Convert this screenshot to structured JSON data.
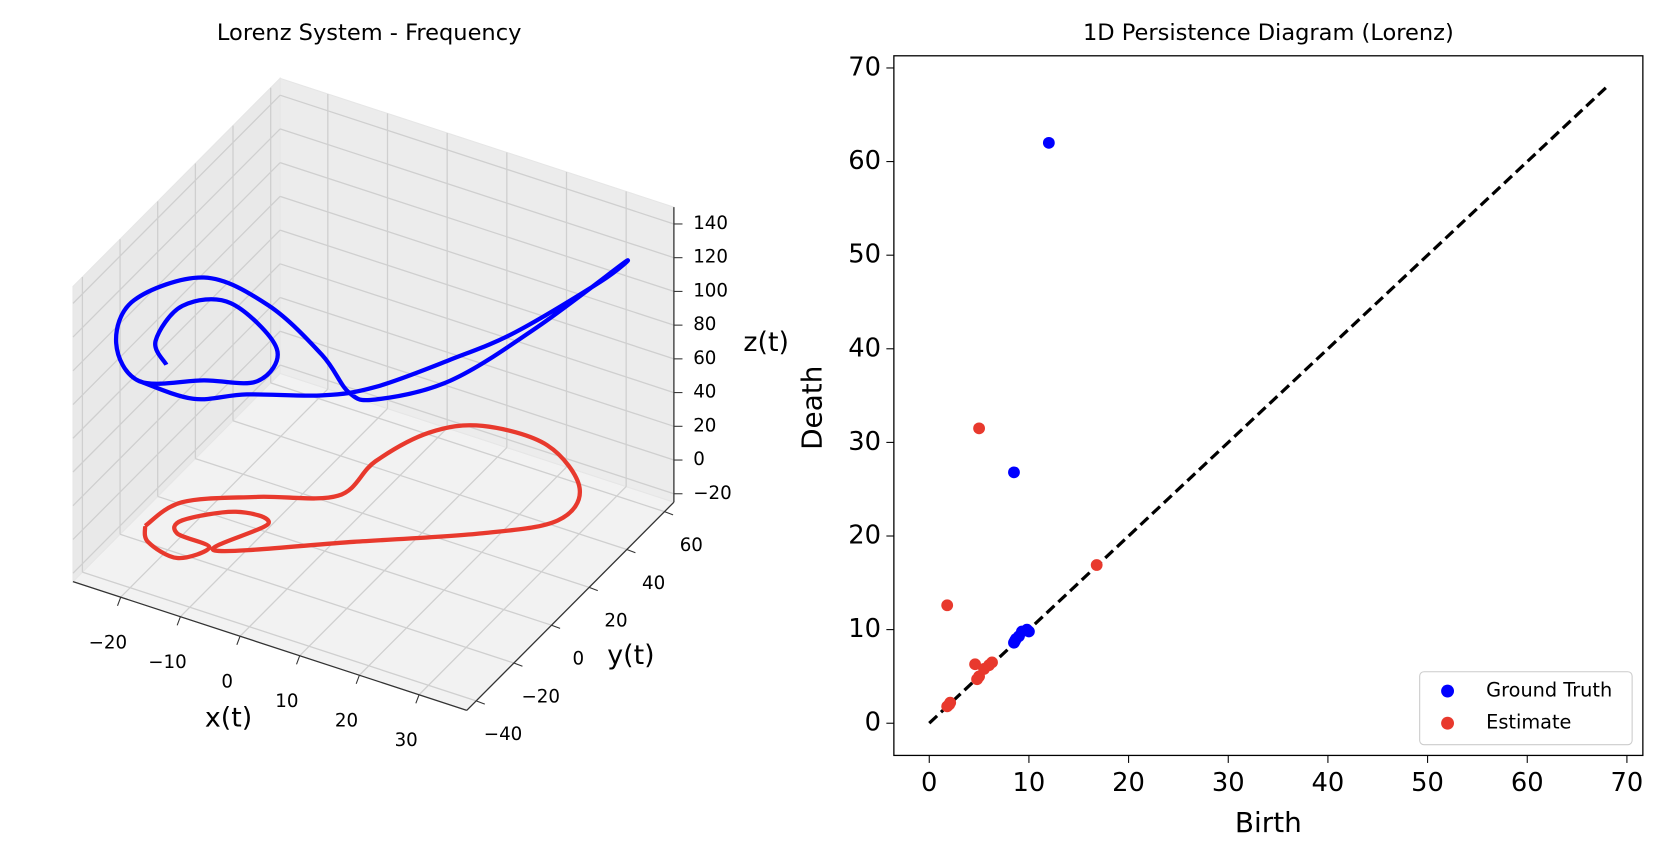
{
  "chart_data": [
    {
      "type": "line3d",
      "title": "Lorenz System - Frequency",
      "xlabel": "x(t)",
      "ylabel": "y(t)",
      "zlabel": "z(t)",
      "xlim": [
        -28,
        38
      ],
      "ylim": [
        -45,
        65
      ],
      "zlim": [
        -25,
        150
      ],
      "xticks": [
        {
          "value": -20,
          "label": "−20"
        },
        {
          "value": -10,
          "label": "−10"
        },
        0,
        10,
        20,
        30
      ],
      "yticks": [
        {
          "value": -40,
          "label": "−40"
        },
        {
          "value": -20,
          "label": "−20"
        },
        0,
        20,
        40,
        60
      ],
      "zticks": [
        {
          "value": -20,
          "label": "−20"
        },
        0,
        20,
        40,
        60,
        80,
        100,
        120,
        140
      ],
      "grid": true,
      "series": [
        {
          "color": "#0000ff",
          "x": [
            -19.3,
            -21.1,
            -16.6,
            -8.5,
            -0.8,
            -4.0,
            -13.0,
            -23.8,
            -27.7,
            -24.7,
            -13.0,
            -2.2,
            6.8,
            11.3,
            15.8,
            21.4,
            25.4,
            33.2,
            29.2,
            21.8,
            17.9,
            12.3,
            6.8,
            -5.8,
            -14.8,
            -23.8
          ],
          "y": [
            -23,
            -23,
            -23,
            -23,
            -23,
            -23,
            -23,
            -23,
            -23,
            -23,
            -23,
            -23,
            -23,
            -23,
            -23,
            -1,
            32,
            54,
            54,
            32,
            10,
            -12,
            -23,
            -23,
            -23,
            -23
          ],
          "z": [
            89,
            101,
            127,
            138,
            120,
            97,
            87,
            74,
            92,
            121,
            148,
            144,
            125,
            108,
            109,
            102,
            101,
            124,
            108,
            94,
            98,
            100,
            101,
            87,
            74,
            74
          ]
        },
        {
          "color": "#e8392d",
          "x": [
            -22.7,
            -21,
            -12.1,
            -2.1,
            -1.7,
            1.5,
            7.4,
            18,
            27.5,
            28.8,
            20.9,
            5.7,
            -10.8,
            -7.4,
            -13,
            -18.7,
            -17.7,
            -11.9,
            -14.6,
            -20.3,
            -22.7
          ],
          "y": [
            -23.5,
            -9.2,
            2.8,
            13.7,
            32.3,
            50.8,
            60.4,
            61.1,
            48.2,
            32.5,
            17.6,
            -2.6,
            -24.2,
            -6.5,
            -6,
            -16.4,
            -22.3,
            -23.6,
            -32.1,
            -29.5,
            -23.5
          ],
          "z": [
            -10,
            -10,
            -10,
            -10,
            -10,
            -10,
            -10,
            -10,
            -10,
            -10,
            -10,
            -10,
            -10,
            -10,
            -10,
            -10,
            -10,
            -10,
            -10,
            -10,
            -10
          ]
        }
      ]
    },
    {
      "type": "scatter",
      "title": "1D Persistence Diagram (Lorenz)",
      "xlabel": "Birth",
      "ylabel": "Death",
      "xlim": [
        -3.55,
        71.6
      ],
      "ylim": [
        -3.44,
        71.3
      ],
      "xticks": [
        0,
        10,
        20,
        30,
        40,
        50,
        60,
        70
      ],
      "yticks": [
        0,
        10,
        20,
        30,
        40,
        50,
        60,
        70
      ],
      "legend": "lower right",
      "reference_line": {
        "x": [
          0,
          68
        ],
        "y": [
          0,
          68
        ],
        "color": "#000000",
        "style": "dashed"
      },
      "series": [
        {
          "name": "Ground Truth",
          "color": "#0000ff",
          "x": [
            12,
            8.5,
            8.5,
            8.7,
            9,
            9.3,
            9.8,
            10,
            8.6
          ],
          "y": [
            62,
            26.8,
            8.6,
            9,
            9.3,
            9.8,
            10,
            9.8,
            8.8
          ]
        },
        {
          "name": "Estimate",
          "color": "#e8392d",
          "x": [
            5,
            1.8,
            16.8,
            4.6,
            5,
            5.5,
            6,
            6.3,
            4.8,
            1.8,
            2.1,
            2
          ],
          "y": [
            31.5,
            12.6,
            16.9,
            6.3,
            5,
            5.8,
            6.2,
            6.5,
            4.7,
            1.8,
            2.2,
            2
          ]
        }
      ]
    }
  ]
}
